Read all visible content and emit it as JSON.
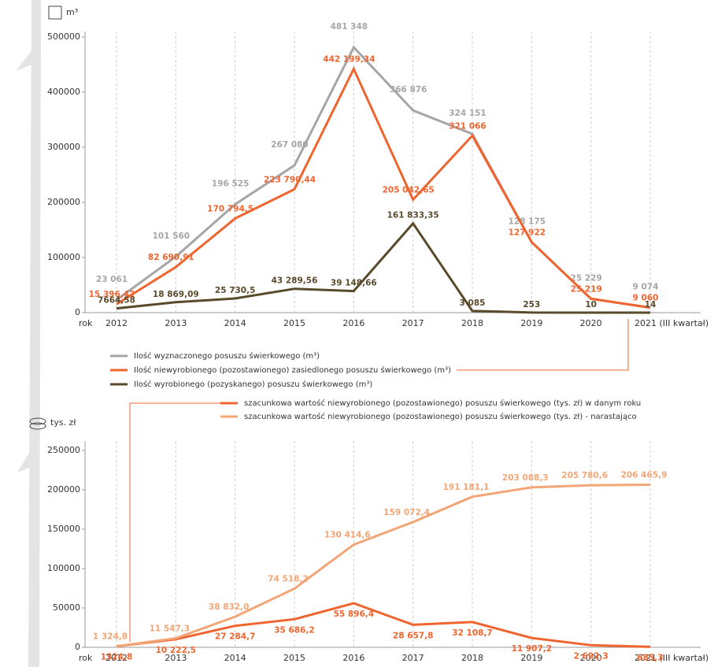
{
  "chart_data": [
    {
      "type": "line",
      "ylabel": "m³",
      "xlabel": "rok",
      "categories": [
        "2012",
        "2013",
        "2014",
        "2015",
        "2016",
        "2017",
        "2018",
        "2019",
        "2020",
        "2021 (III kwartał)"
      ],
      "ylim": [
        0,
        510000
      ],
      "yticks": [
        0,
        100000,
        200000,
        300000,
        400000,
        500000
      ],
      "series": [
        {
          "name": "Ilość wyznaczonego posuszu świerkowego (m³)",
          "color": "#a6a6a8",
          "values": [
            23061,
            101560,
            196525,
            267080,
            481348,
            366876,
            324151,
            128175,
            25229,
            9074
          ],
          "value_labels": [
            "23 061",
            "101 560",
            "196 525",
            "267 080",
            "481 348",
            "366 876",
            "324 151",
            "128 175",
            "25 229",
            "9 074"
          ]
        },
        {
          "name": "Ilość niewyrobionego (pozostawionego) zasiedlonego posuszu świerkowego (m³)",
          "color": "#ef6530",
          "values": [
            15396.42,
            82690.91,
            170794.5,
            223790.44,
            442199.34,
            205042.65,
            321066,
            127922,
            25219,
            9060
          ],
          "value_labels": [
            "15 396,42",
            "82 690,91",
            "170 794,5",
            "223 790,44",
            "442 199,34",
            "205 042,65",
            "321 066",
            "127 922",
            "25 219",
            "9 060"
          ]
        },
        {
          "name": "Ilość wyrobionego (pozyskanego) posuszu świerkowego (m³)",
          "color": "#5a4a2c",
          "values": [
            7664.58,
            18869.09,
            25730.5,
            43289.56,
            39148.66,
            161833.35,
            3085,
            253,
            10,
            14
          ],
          "value_labels": [
            "7664,58",
            "18 869,09",
            "25 730,5",
            "43 289,56",
            "39 148,66",
            "161 833,35",
            "3 085",
            "253",
            "10",
            "14"
          ]
        }
      ]
    },
    {
      "type": "line",
      "ylabel": "tys. zł",
      "xlabel": "rok",
      "categories": [
        "2012",
        "2013",
        "2014",
        "2015",
        "2016",
        "2017",
        "2018",
        "2019",
        "2020",
        "2021 (III kwartał)"
      ],
      "ylim": [
        0,
        262000
      ],
      "yticks": [
        0,
        50000,
        100000,
        150000,
        200000,
        250000
      ],
      "series": [
        {
          "name": "szacunkowa wartość niewyrobionego (pozostawionego) posuszu świerkowego (tys. zł) w danym roku",
          "color": "#ef6530",
          "values": [
            1324.8,
            10222.5,
            27284.7,
            35686.2,
            55896.4,
            28657.8,
            32108.7,
            11907.2,
            2692.3,
            685.3
          ],
          "value_labels": [
            "1324,8",
            "10 222,5",
            "27 284,7",
            "35 686,2",
            "55 896,4",
            "28 657,8",
            "32 108,7",
            "11 907,2",
            "2 692,3",
            "685,3"
          ]
        },
        {
          "name": "szacunkowa wartość niewyrobionego (pozostawionego) posuszu świerkowego (tys. zł) - narastająco",
          "color": "#f2a677",
          "values": [
            1324.8,
            11547.3,
            38832.0,
            74518.2,
            130414.6,
            159072.4,
            191181.1,
            203088.3,
            205780.6,
            206465.9
          ],
          "value_labels": [
            "1 324,8",
            "11 547,3",
            "38 832,0",
            "74 518,2",
            "130 414,6",
            "159 072,4",
            "191 181,1",
            "203 088,3",
            "205 780,6",
            "206 465,9"
          ]
        }
      ]
    }
  ]
}
